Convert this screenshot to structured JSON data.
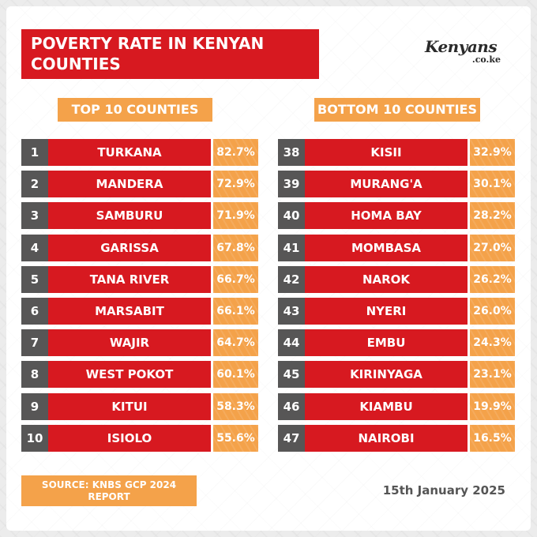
{
  "colors": {
    "title_red": "#d71920",
    "bar_red": "#d71920",
    "rank_grey": "#575656",
    "orange": "#f4a24a",
    "text_white": "#ffffff"
  },
  "header": {
    "title_line1": "POVERTY RATE IN KENYAN",
    "title_line2": "COUNTIES",
    "logo_main": "Kenyans",
    "logo_sub": ".co.ke"
  },
  "footer": {
    "source_line1": "SOURCE: KNBS GCP 2024",
    "source_line2": "REPORT",
    "date": "15th January 2025"
  },
  "chart_data": [
    {
      "type": "table",
      "title": "TOP 10 COUNTIES",
      "rows": [
        {
          "rank": "1",
          "county": "TURKANA",
          "value": "82.7%"
        },
        {
          "rank": "2",
          "county": "MANDERA",
          "value": "72.9%"
        },
        {
          "rank": "3",
          "county": "SAMBURU",
          "value": "71.9%"
        },
        {
          "rank": "4",
          "county": "GARISSA",
          "value": "67.8%"
        },
        {
          "rank": "5",
          "county": "TANA RIVER",
          "value": "66.7%"
        },
        {
          "rank": "6",
          "county": "MARSABIT",
          "value": "66.1%"
        },
        {
          "rank": "7",
          "county": "WAJIR",
          "value": "64.7%"
        },
        {
          "rank": "8",
          "county": "WEST POKOT",
          "value": "60.1%"
        },
        {
          "rank": "9",
          "county": "KITUI",
          "value": "58.3%"
        },
        {
          "rank": "10",
          "county": "ISIOLO",
          "value": "55.6%"
        }
      ]
    },
    {
      "type": "table",
      "title": "BOTTOM 10 COUNTIES",
      "rows": [
        {
          "rank": "38",
          "county": "KISII",
          "value": "32.9%"
        },
        {
          "rank": "39",
          "county": "MURANG'A",
          "value": "30.1%"
        },
        {
          "rank": "40",
          "county": "HOMA BAY",
          "value": "28.2%"
        },
        {
          "rank": "41",
          "county": "MOMBASA",
          "value": "27.0%"
        },
        {
          "rank": "42",
          "county": "NAROK",
          "value": "26.2%"
        },
        {
          "rank": "43",
          "county": "NYERI",
          "value": "26.0%"
        },
        {
          "rank": "44",
          "county": "EMBU",
          "value": "24.3%"
        },
        {
          "rank": "45",
          "county": "KIRINYAGA",
          "value": "23.1%"
        },
        {
          "rank": "46",
          "county": "KIAMBU",
          "value": "19.9%"
        },
        {
          "rank": "47",
          "county": "NAIROBI",
          "value": "16.5%"
        }
      ]
    }
  ]
}
